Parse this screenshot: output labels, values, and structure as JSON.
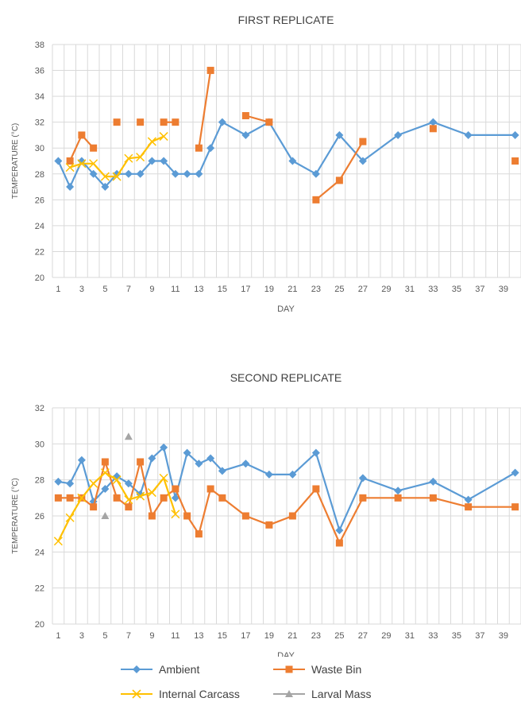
{
  "chart_data": [
    {
      "type": "line",
      "title": "FIRST REPLICATE",
      "xlabel": "DAY",
      "ylabel": "TEMPERATURE (°C)",
      "ylim": [
        20,
        38
      ],
      "yticks": [
        "20",
        "22",
        "24",
        "26",
        "28",
        "30",
        "32",
        "34",
        "36",
        "38"
      ],
      "x_categories": [
        "1",
        "2",
        "3",
        "4",
        "5",
        "6",
        "7",
        "8",
        "9",
        "10",
        "11",
        "12",
        "13",
        "14",
        "15",
        "16",
        "17",
        "18",
        "19",
        "20",
        "21",
        "22",
        "23",
        "24",
        "25",
        "26",
        "27",
        "28",
        "29",
        "30",
        "31",
        "32",
        "33",
        "34",
        "35",
        "36",
        "37",
        "38",
        "39",
        "40"
      ],
      "x_tick_labels": [
        "1",
        "3",
        "5",
        "7",
        "9",
        "11",
        "13",
        "15",
        "17",
        "19",
        "21",
        "23",
        "25",
        "27",
        "29",
        "31",
        "33",
        "35",
        "37",
        "39"
      ],
      "grid": true,
      "series": [
        {
          "name": "Ambient",
          "color": "#5B9BD5",
          "marker": "diamond",
          "points": [
            [
              1,
              29
            ],
            [
              2,
              27
            ],
            [
              3,
              29
            ],
            [
              4,
              28
            ],
            [
              5,
              27
            ],
            [
              6,
              28
            ],
            [
              7,
              28
            ],
            [
              8,
              28
            ],
            [
              9,
              29
            ],
            [
              10,
              29
            ],
            [
              11,
              28
            ],
            [
              12,
              28
            ],
            [
              13,
              28
            ],
            [
              14,
              30
            ],
            [
              15,
              32
            ],
            [
              17,
              31
            ],
            [
              19,
              32
            ],
            [
              21,
              29
            ],
            [
              23,
              28
            ],
            [
              25,
              31
            ],
            [
              27,
              29
            ],
            [
              30,
              31
            ],
            [
              33,
              32
            ],
            [
              36,
              31
            ],
            [
              40,
              31
            ]
          ]
        },
        {
          "name": "Waste Bin",
          "color": "#ED7D31",
          "marker": "square",
          "points": [
            [
              2,
              29
            ],
            [
              3,
              31
            ],
            [
              4,
              30
            ],
            [
              6,
              32
            ],
            [
              8,
              32
            ],
            [
              10,
              32
            ],
            [
              11,
              32
            ],
            [
              13,
              30
            ],
            [
              14,
              36
            ],
            [
              17,
              32.5
            ],
            [
              19,
              32
            ],
            [
              23,
              26
            ],
            [
              25,
              27.5
            ],
            [
              27,
              30.5
            ],
            [
              33,
              31.5
            ],
            [
              40,
              29
            ]
          ],
          "segments": [
            [
              0,
              1,
              2
            ],
            [
              3
            ],
            [
              4
            ],
            [
              5,
              6
            ],
            [
              7,
              8
            ],
            [
              9,
              10
            ],
            [
              11,
              12,
              13
            ],
            [
              14
            ],
            [
              15
            ]
          ]
        },
        {
          "name": "Internal Carcass",
          "color": "#FFC000",
          "marker": "x",
          "points": [
            [
              2,
              28.5
            ],
            [
              3,
              28.8
            ],
            [
              4,
              28.8
            ],
            [
              5,
              27.8
            ],
            [
              6,
              27.8
            ],
            [
              7,
              29.2
            ],
            [
              8,
              29.3
            ],
            [
              9,
              30.5
            ],
            [
              10,
              30.9
            ]
          ]
        }
      ]
    },
    {
      "type": "line",
      "title": "SECOND REPLICATE",
      "xlabel": "DAY",
      "ylabel": "TEMPERATURE (°C)",
      "ylim": [
        20,
        32
      ],
      "yticks": [
        "20",
        "22",
        "24",
        "26",
        "28",
        "30",
        "32"
      ],
      "x_categories": [
        "1",
        "2",
        "3",
        "4",
        "5",
        "6",
        "7",
        "8",
        "9",
        "10",
        "11",
        "12",
        "13",
        "14",
        "15",
        "16",
        "17",
        "18",
        "19",
        "20",
        "21",
        "22",
        "23",
        "24",
        "25",
        "26",
        "27",
        "28",
        "29",
        "30",
        "31",
        "32",
        "33",
        "34",
        "35",
        "36",
        "37",
        "38",
        "39",
        "40"
      ],
      "x_tick_labels": [
        "1",
        "3",
        "5",
        "7",
        "9",
        "11",
        "13",
        "15",
        "17",
        "19",
        "21",
        "23",
        "25",
        "27",
        "29",
        "31",
        "33",
        "35",
        "37",
        "39"
      ],
      "grid": true,
      "series": [
        {
          "name": "Ambient",
          "color": "#5B9BD5",
          "marker": "diamond",
          "points": [
            [
              1,
              27.9
            ],
            [
              2,
              27.8
            ],
            [
              3,
              29.1
            ],
            [
              4,
              26.8
            ],
            [
              5,
              27.5
            ],
            [
              6,
              28.2
            ],
            [
              7,
              27.8
            ],
            [
              8,
              27.2
            ],
            [
              9,
              29.2
            ],
            [
              10,
              29.8
            ],
            [
              11,
              27
            ],
            [
              12,
              29.5
            ],
            [
              13,
              28.9
            ],
            [
              14,
              29.2
            ],
            [
              15,
              28.5
            ],
            [
              17,
              28.9
            ],
            [
              19,
              28.3
            ],
            [
              21,
              28.3
            ],
            [
              23,
              29.5
            ],
            [
              25,
              25.2
            ],
            [
              27,
              28.1
            ],
            [
              30,
              27.4
            ],
            [
              33,
              27.9
            ],
            [
              36,
              26.9
            ],
            [
              40,
              28.4
            ]
          ]
        },
        {
          "name": "Waste Bin",
          "color": "#ED7D31",
          "marker": "square",
          "points": [
            [
              1,
              27
            ],
            [
              2,
              27
            ],
            [
              3,
              27
            ],
            [
              4,
              26.5
            ],
            [
              5,
              29
            ],
            [
              6,
              27
            ],
            [
              7,
              26.5
            ],
            [
              8,
              29
            ],
            [
              9,
              26
            ],
            [
              10,
              27
            ],
            [
              11,
              27.5
            ],
            [
              12,
              26
            ],
            [
              13,
              25
            ],
            [
              14,
              27.5
            ],
            [
              15,
              27
            ],
            [
              17,
              26
            ],
            [
              19,
              25.5
            ],
            [
              21,
              26
            ],
            [
              23,
              27.5
            ],
            [
              25,
              24.5
            ],
            [
              27,
              27
            ],
            [
              30,
              27
            ],
            [
              33,
              27
            ],
            [
              36,
              26.5
            ],
            [
              40,
              26.5
            ]
          ]
        },
        {
          "name": "Internal Carcass",
          "color": "#FFC000",
          "marker": "x",
          "points": [
            [
              1,
              24.6
            ],
            [
              2,
              25.9
            ],
            [
              3,
              27
            ],
            [
              4,
              27.8
            ],
            [
              5,
              28.4
            ],
            [
              6,
              28
            ],
            [
              7,
              26.9
            ],
            [
              8,
              27.1
            ],
            [
              9,
              27.3
            ],
            [
              10,
              28.1
            ],
            [
              11,
              26.1
            ]
          ]
        },
        {
          "name": "Larval Mass",
          "color": "#A5A5A5",
          "marker": "triangle",
          "points": [
            [
              5,
              26
            ],
            [
              7,
              30.4
            ]
          ],
          "segments": [
            [
              0
            ],
            [
              1
            ]
          ]
        }
      ]
    }
  ],
  "legend": {
    "entries": [
      {
        "label": "Ambient",
        "color": "#5B9BD5",
        "marker": "diamond"
      },
      {
        "label": "Waste Bin",
        "color": "#ED7D31",
        "marker": "square"
      },
      {
        "label": "Internal Carcass",
        "color": "#FFC000",
        "marker": "x"
      },
      {
        "label": "Larval Mass",
        "color": "#A5A5A5",
        "marker": "triangle"
      }
    ]
  }
}
